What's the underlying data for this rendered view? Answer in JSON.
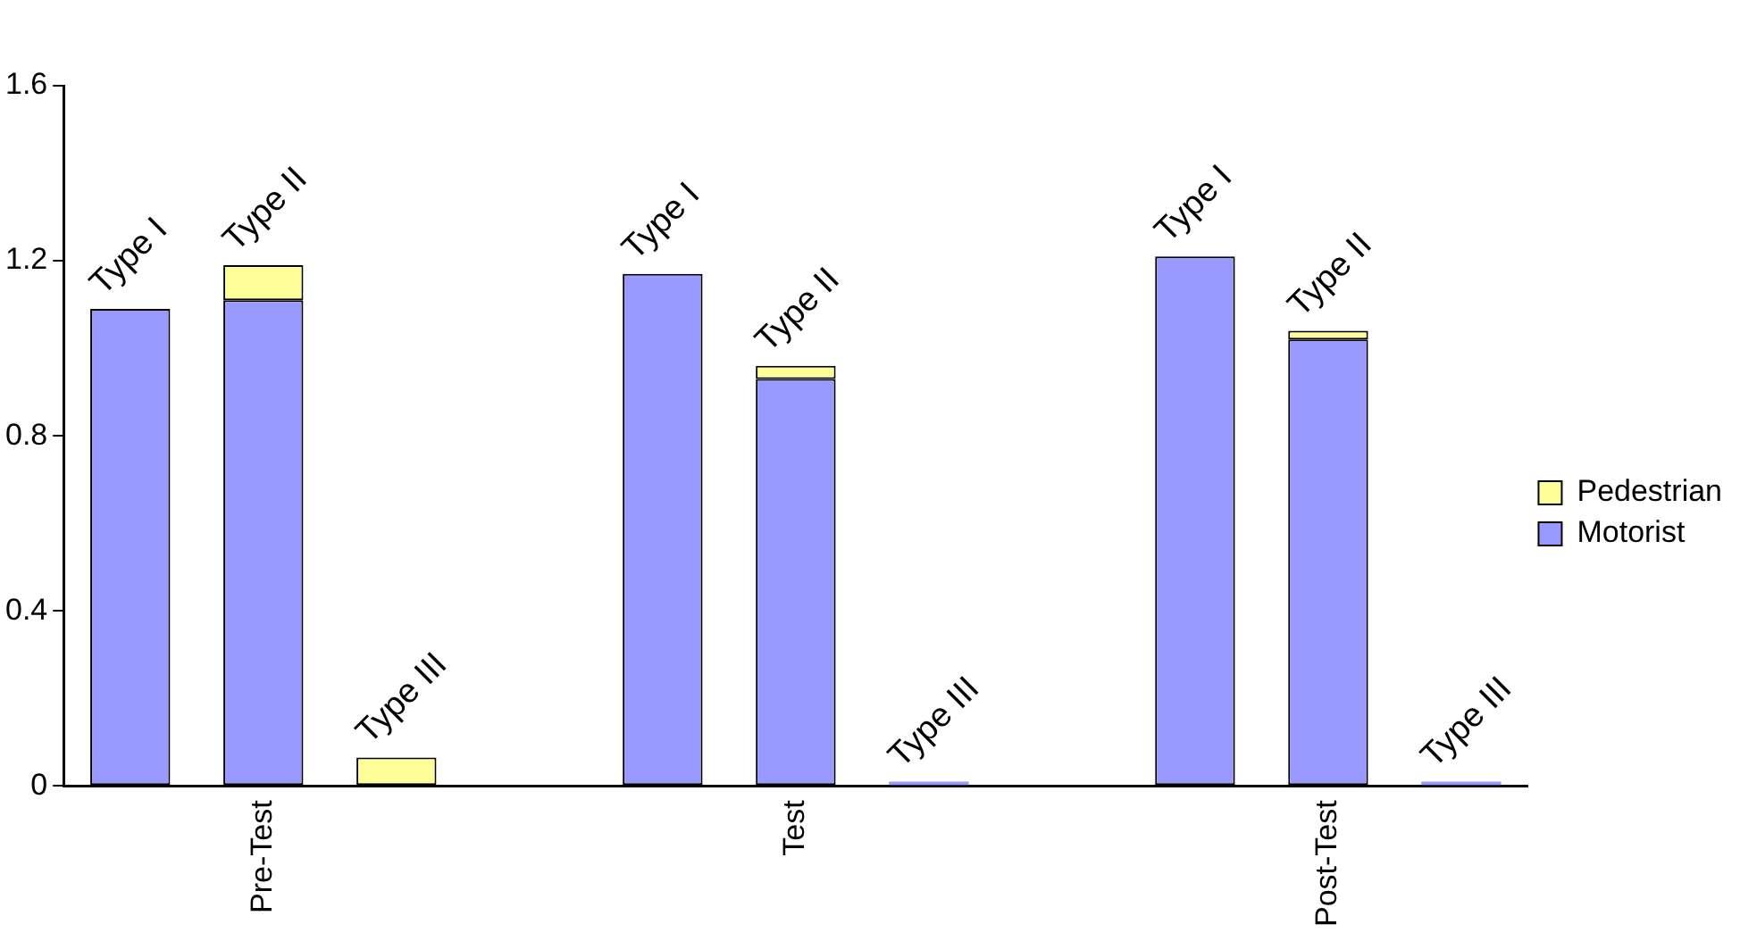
{
  "chart_data": {
    "type": "bar",
    "stacked": true,
    "categories": [
      null,
      "Pre-Test",
      null,
      null,
      null,
      "Test",
      null,
      null,
      null,
      "Post-Test",
      null
    ],
    "series": [
      {
        "name": "Motorist",
        "color": "#9999ff",
        "values": [
          1.09,
          1.11,
          null,
          null,
          1.17,
          0.93,
          0.01,
          null,
          1.21,
          1.02,
          0.01
        ]
      },
      {
        "name": "Pedestrian",
        "color": "#ffff99",
        "values": [
          null,
          0.08,
          0.065,
          null,
          null,
          0.03,
          null,
          null,
          null,
          0.02,
          null
        ],
        "value_labels": [
          "Type I",
          "Type II",
          "Type III",
          null,
          "Type I",
          "Type II",
          "Type III",
          null,
          "Type I",
          "Type II",
          "Type III"
        ]
      }
    ],
    "ylim": [
      0,
      1.6
    ],
    "yticks": [
      0,
      0.4,
      0.8,
      1.2,
      1.6
    ],
    "grid": false,
    "legend": "right"
  }
}
